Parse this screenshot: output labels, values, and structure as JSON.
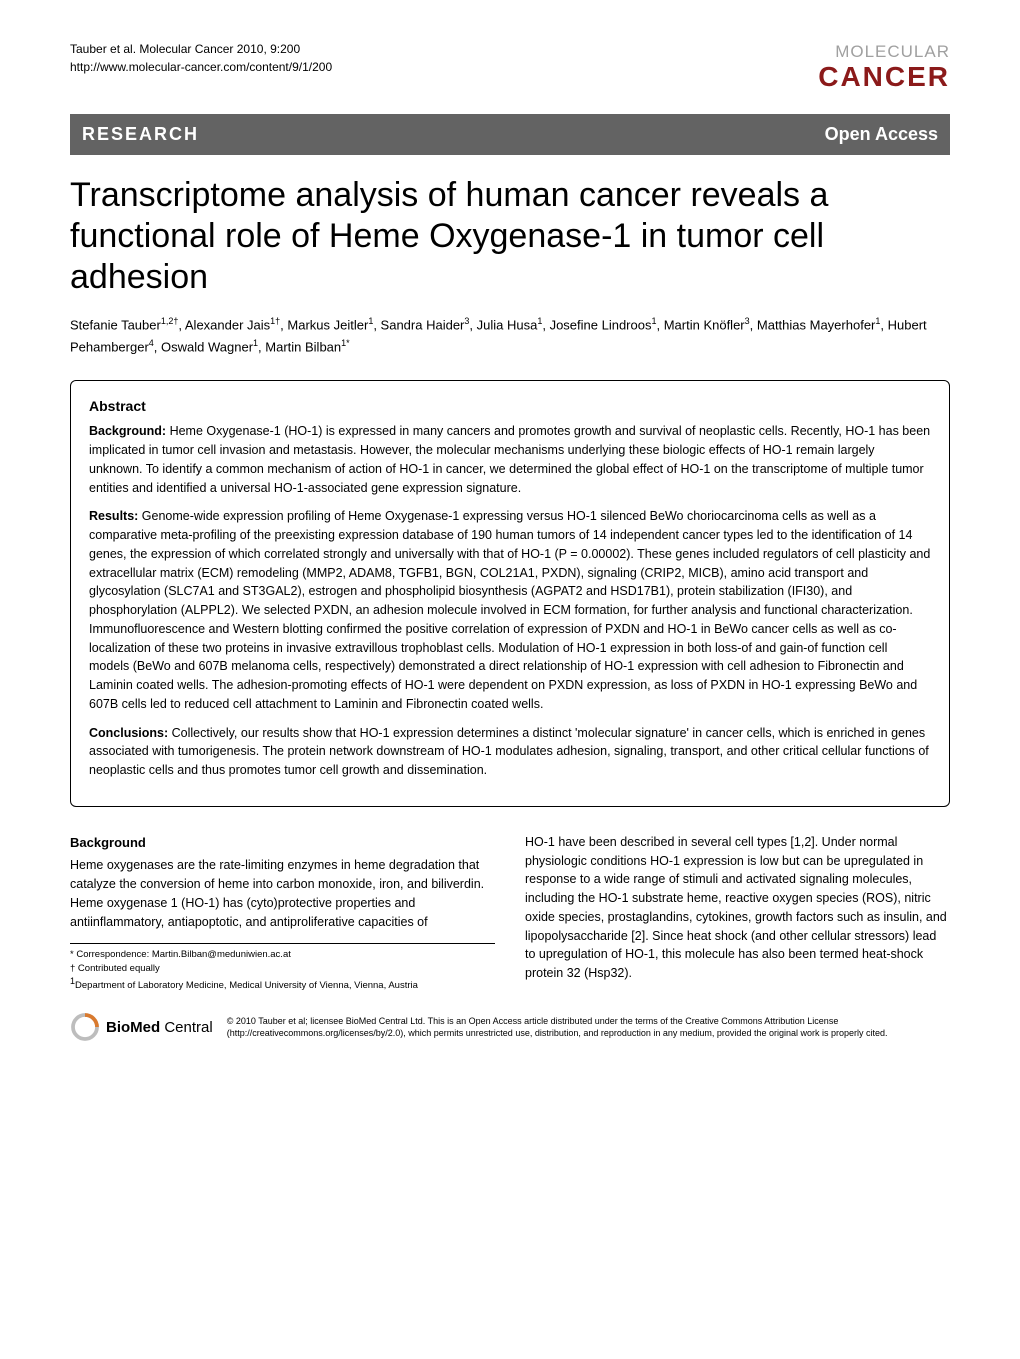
{
  "header": {
    "citation_line1": "Tauber et al. Molecular Cancer 2010, 9:200",
    "citation_line2": "http://www.molecular-cancer.com/content/9/1/200",
    "logo_top": "MOLECULAR",
    "logo_bottom": "CANCER",
    "logo_top_color": "#a0a0a0",
    "logo_bottom_color": "#8b1a1a"
  },
  "band": {
    "left": "RESEARCH",
    "right": "Open Access",
    "bg_color": "#636363",
    "text_color": "#ffffff"
  },
  "title": "Transcriptome analysis of human cancer reveals a functional role of Heme Oxygenase-1 in tumor cell adhesion",
  "authors_html": "Stefanie Tauber<sup>1,2†</sup>, Alexander Jais<sup>1†</sup>, Markus Jeitler<sup>1</sup>, Sandra Haider<sup>3</sup>, Julia Husa<sup>1</sup>, Josefine Lindroos<sup>1</sup>, Martin Knöfler<sup>3</sup>, Matthias Mayerhofer<sup>1</sup>, Hubert Pehamberger<sup>4</sup>, Oswald Wagner<sup>1</sup>, Martin Bilban<sup>1*</sup>",
  "abstract": {
    "heading": "Abstract",
    "background_label": "Background:",
    "background_text": " Heme Oxygenase-1 (HO-1) is expressed in many cancers and promotes growth and survival of neoplastic cells. Recently, HO-1 has been implicated in tumor cell invasion and metastasis. However, the molecular mechanisms underlying these biologic effects of HO-1 remain largely unknown. To identify a common mechanism of action of HO-1 in cancer, we determined the global effect of HO-1 on the transcriptome of multiple tumor entities and identified a universal HO-1-associated gene expression signature.",
    "results_label": "Results:",
    "results_text": " Genome-wide expression profiling of Heme Oxygenase-1 expressing versus HO-1 silenced BeWo choriocarcinoma cells as well as a comparative meta-profiling of the preexisting expression database of 190 human tumors of 14 independent cancer types led to the identification of 14 genes, the expression of which correlated strongly and universally with that of HO-1 (P = 0.00002). These genes included regulators of cell plasticity and extracellular matrix (ECM) remodeling (MMP2, ADAM8, TGFB1, BGN, COL21A1, PXDN), signaling (CRIP2, MICB), amino acid transport and glycosylation (SLC7A1 and ST3GAL2), estrogen and phospholipid biosynthesis (AGPAT2 and HSD17B1), protein stabilization (IFI30), and phosphorylation (ALPPL2). We selected PXDN, an adhesion molecule involved in ECM formation, for further analysis and functional characterization. Immunofluorescence and Western blotting confirmed the positive correlation of expression of PXDN and HO-1 in BeWo cancer cells as well as co-localization of these two proteins in invasive extravillous trophoblast cells. Modulation of HO-1 expression in both loss-of and gain-of function cell models (BeWo and 607B melanoma cells, respectively) demonstrated a direct relationship of HO-1 expression with cell adhesion to Fibronectin and Laminin coated wells. The adhesion-promoting effects of HO-1 were dependent on PXDN expression, as loss of PXDN in HO-1 expressing BeWo and 607B cells led to reduced cell attachment to Laminin and Fibronectin coated wells.",
    "conclusions_label": "Conclusions:",
    "conclusions_text": " Collectively, our results show that HO-1 expression determines a distinct 'molecular signature' in cancer cells, which is enriched in genes associated with tumorigenesis. The protein network downstream of HO-1 modulates adhesion, signaling, transport, and other critical cellular functions of neoplastic cells and thus promotes tumor cell growth and dissemination."
  },
  "body": {
    "heading": "Background",
    "col1_text": "Heme oxygenases are the rate-limiting enzymes in heme degradation that catalyze the conversion of heme into carbon monoxide, iron, and biliverdin. Heme oxygenase 1 (HO-1) has (cyto)protective properties and antiinflammatory, antiapoptotic, and antiproliferative capacities of",
    "col2_text": "HO-1 have been described in several cell types [1,2]. Under normal physiologic conditions HO-1 expression is low but can be upregulated in response to a wide range of stimuli and activated signaling molecules, including the HO-1 substrate heme, reactive oxygen species (ROS), nitric oxide species, prostaglandins, cytokines, growth factors such as insulin, and lipopolysaccharide [2]. Since heat shock (and other cellular stressors) lead to upregulation of HO-1, this molecule has also been termed heat-shock protein 32 (Hsp32)."
  },
  "footnotes": {
    "correspondence": "* Correspondence: Martin.Bilban@meduniwien.ac.at",
    "equal": "† Contributed equally",
    "affiliation": "1Department of Laboratory Medicine, Medical University of Vienna, Vienna, Austria"
  },
  "footer": {
    "bmc_bold": "BioMed",
    "bmc_light": " Central",
    "license": "© 2010 Tauber et al; licensee BioMed Central Ltd. This is an Open Access article distributed under the terms of the Creative Commons Attribution License (http://creativecommons.org/licenses/by/2.0), which permits unrestricted use, distribution, and reproduction in any medium, provided the original work is properly cited.",
    "ring_colors": {
      "outer": "#bdbdbd",
      "inner": "#d97a2e"
    }
  }
}
